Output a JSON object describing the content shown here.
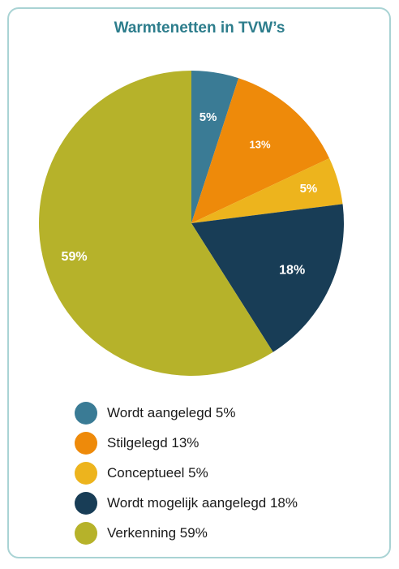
{
  "chart_data": {
    "type": "pie",
    "title": "Warmtenetten in TVW’s",
    "slices": [
      {
        "label": "Wordt aangelegd 5%",
        "value": 5,
        "data_label": "5%",
        "color": "#3a7b95"
      },
      {
        "label": "Stilgelegd 13%",
        "value": 13,
        "data_label": "13%",
        "color": "#ee8a0a"
      },
      {
        "label": "Conceptueel 5%",
        "value": 5,
        "data_label": "5%",
        "color": "#edb41d"
      },
      {
        "label": "Wordt mogelijk aangelegd 18%",
        "value": 18,
        "data_label": "18%",
        "color": "#183d56"
      },
      {
        "label": "Verkenning 59%",
        "value": 59,
        "data_label": "59%",
        "color": "#b6b22a"
      }
    ],
    "legend_position": "bottom"
  }
}
